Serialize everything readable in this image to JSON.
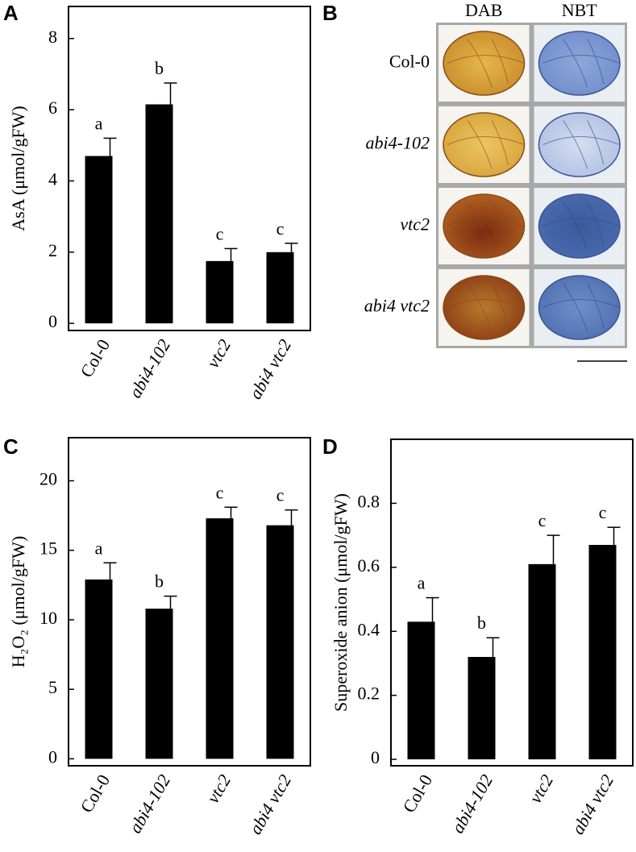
{
  "chart_data": [
    {
      "type": "bar",
      "panel": "A",
      "ylabel": "AsA (μmol/gFW)",
      "categories": [
        "Col-0",
        "abi4-102",
        "vtc2",
        "abi4 vtc2"
      ],
      "values": [
        4.7,
        6.15,
        1.75,
        2.0
      ],
      "errors": [
        0.5,
        0.6,
        0.35,
        0.25
      ],
      "letters": [
        "a",
        "b",
        "c",
        "c"
      ],
      "color": "#000000",
      "ylim": [
        -0.2,
        8.9
      ],
      "yticks": [
        0,
        2,
        4,
        6,
        8
      ]
    },
    {
      "type": "image-grid",
      "panel": "B",
      "columns": [
        "DAB",
        "NBT"
      ],
      "rows": [
        "Col-0",
        "abi4-102",
        "vtc2",
        "abi4 vtc2"
      ]
    },
    {
      "type": "bar",
      "panel": "C",
      "ylabel": "H₂O₂ (μmol/gFW)",
      "categories": [
        "Col-0",
        "abi4-102",
        "vtc2",
        "abi4 vtc2"
      ],
      "values": [
        12.9,
        10.8,
        17.3,
        16.8
      ],
      "errors": [
        1.2,
        0.9,
        0.8,
        1.1
      ],
      "letters": [
        "a",
        "b",
        "c",
        "c"
      ],
      "color": "#000000",
      "ylim": [
        -0.5,
        23.1
      ],
      "yticks": [
        0,
        5,
        10,
        15,
        20
      ]
    },
    {
      "type": "bar",
      "panel": "D",
      "ylabel": "Superoxide anion (μmol/gFW)",
      "categories": [
        "Col-0",
        "abi4-102",
        "vtc2",
        "abi4 vtc2"
      ],
      "values": [
        0.43,
        0.32,
        0.61,
        0.67
      ],
      "errors": [
        0.075,
        0.06,
        0.09,
        0.055
      ],
      "letters": [
        "a",
        "b",
        "c",
        "c"
      ],
      "color": "#000000",
      "ylim": [
        -0.02,
        1.0
      ],
      "yticks": [
        0,
        0.2,
        0.4,
        0.6,
        0.8
      ]
    }
  ]
}
